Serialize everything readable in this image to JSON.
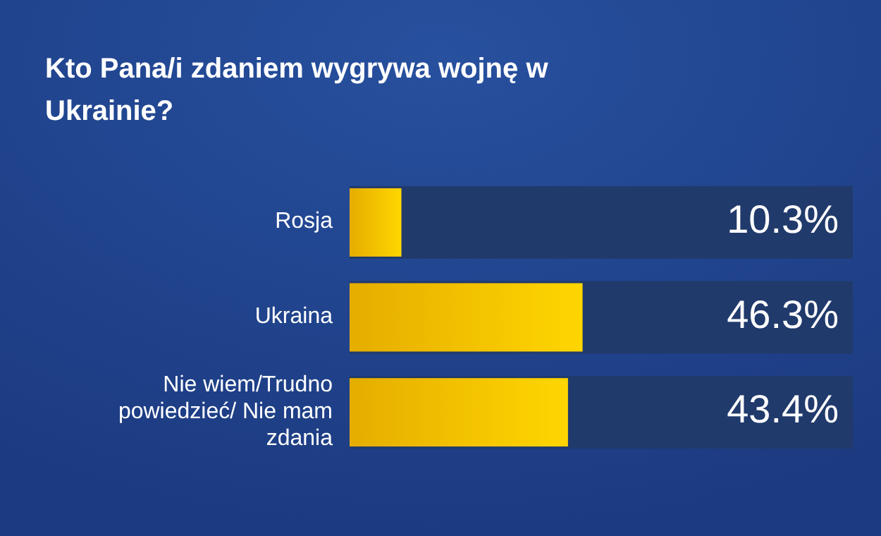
{
  "chart_data": {
    "type": "bar",
    "orientation": "horizontal",
    "title": "Kto Pana/i zdaniem wygrywa wojnę w Ukrainie?",
    "categories": [
      "Rosja",
      "Ukraina",
      "Nie wiem/Trudno powiedzieć/ Nie mam zdania"
    ],
    "series": [
      {
        "color": "#ffc000",
        "values": [
          10.3,
          46.3,
          43.4
        ],
        "value_labels": [
          "10.3%",
          "46.3%",
          "43.4%"
        ]
      },
      {
        "color": "#213a6c",
        "values": [
          100,
          100,
          100
        ]
      }
    ],
    "xlim": [
      0,
      100
    ]
  }
}
